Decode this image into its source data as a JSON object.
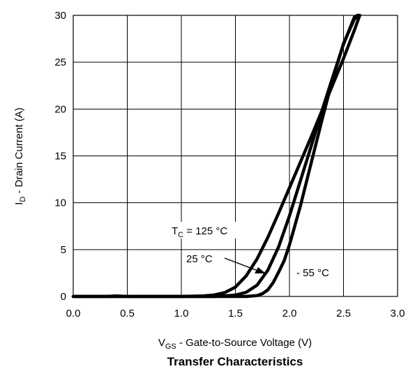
{
  "chart_data": {
    "type": "line",
    "title": "Transfer Characteristics",
    "xlabel": {
      "main": "V",
      "sub": "GS",
      "rest": "  -   Gate-to-Source Voltage (V)"
    },
    "ylabel": {
      "main": "I",
      "sub": "D",
      "rest": "  -   Drain Current (A)"
    },
    "xlim": [
      0,
      3
    ],
    "ylim": [
      0,
      30
    ],
    "xticks": [
      "0.0",
      "0.5",
      "1.0",
      "1.5",
      "2.0",
      "2.5",
      "3.0"
    ],
    "yticks": [
      "0",
      "5",
      "10",
      "15",
      "20",
      "25",
      "30"
    ],
    "grid": true,
    "series": [
      {
        "x": [
          0,
          0.3,
          0.4,
          0.5,
          1.0,
          1.2,
          1.3,
          1.4,
          1.5,
          1.6,
          1.7,
          1.8,
          1.9,
          2.0,
          2.1,
          2.2,
          2.3,
          2.4,
          2.5,
          2.6,
          2.65
        ],
        "y": [
          0,
          0,
          0.05,
          0,
          0,
          0.05,
          0.15,
          0.4,
          1.0,
          2.2,
          4.0,
          6.3,
          8.9,
          11.6,
          14.3,
          17.0,
          19.8,
          22.6,
          25.4,
          28.4,
          30
        ]
      },
      {
        "x": [
          0,
          1.3,
          1.4,
          1.5,
          1.6,
          1.7,
          1.8,
          1.9,
          2.0,
          2.1,
          2.2,
          2.3,
          2.4,
          2.5,
          2.6,
          2.63
        ],
        "y": [
          0,
          0,
          0.05,
          0.15,
          0.45,
          1.2,
          2.8,
          5.3,
          8.6,
          12.3,
          16.0,
          19.8,
          23.4,
          26.9,
          29.8,
          30
        ]
      },
      {
        "x": [
          0,
          1.6,
          1.7,
          1.75,
          1.8,
          1.85,
          1.9,
          1.95,
          2.0,
          2.1,
          2.2,
          2.3,
          2.4,
          2.5,
          2.6,
          2.64
        ],
        "y": [
          0,
          0,
          0.1,
          0.3,
          0.7,
          1.5,
          2.6,
          3.8,
          5.5,
          9.6,
          14.2,
          18.8,
          23.2,
          27.0,
          29.6,
          30
        ]
      }
    ],
    "annotations": {
      "t125": {
        "main": "T",
        "sub": "C",
        "rest": " = 125 °C"
      },
      "t25": "25 °C",
      "tm55": "- 55 °C"
    }
  }
}
